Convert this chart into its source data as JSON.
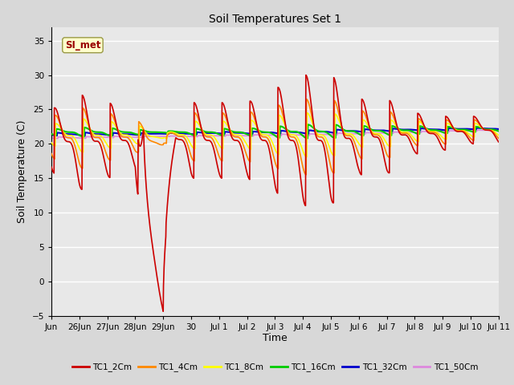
{
  "title": "Soil Temperatures Set 1",
  "xlabel": "Time",
  "ylabel": "Soil Temperature (C)",
  "ylim": [
    -5,
    37
  ],
  "yticks": [
    -5,
    0,
    5,
    10,
    15,
    20,
    25,
    30,
    35
  ],
  "annotation_text": "SI_met",
  "annotation_color": "#990000",
  "annotation_bg": "#ffffcc",
  "annotation_edge": "#999944",
  "fig_facecolor": "#d8d8d8",
  "axes_facecolor": "#e8e8e8",
  "grid_color": "#ffffff",
  "series_colors": {
    "TC1_2Cm": "#cc0000",
    "TC1_4Cm": "#ff8800",
    "TC1_8Cm": "#ffff00",
    "TC1_16Cm": "#00cc00",
    "TC1_32Cm": "#0000cc",
    "TC1_50Cm": "#dd88dd"
  },
  "tick_labels": [
    "Jun",
    "26Jun",
    "27Jun",
    "28Jun",
    "29Jun",
    "30",
    "Jul 1",
    "Jul 2",
    "Jul 3",
    "Jul 4",
    "Jul 5",
    "Jul 6",
    "Jul 7",
    "Jul 8",
    "Jul 9",
    "Jul 10",
    "Jul 11"
  ],
  "total_days": 16,
  "pts_per_day": 96
}
